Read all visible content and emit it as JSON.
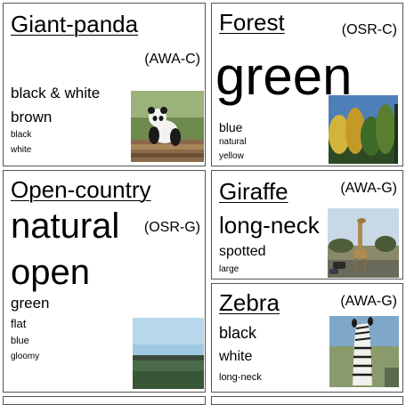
{
  "cards": [
    {
      "title": "Giant-panda",
      "code": "(AWA-C)",
      "attributes": [
        "black & white",
        "brown",
        "black",
        "white"
      ],
      "image": "panda-photo"
    },
    {
      "title": "Forest",
      "code": "(OSR-C)",
      "attributes": [
        "green",
        "blue",
        "natural",
        "yellow"
      ],
      "image": "forest-photo"
    },
    {
      "title": "Open-country",
      "code": "(OSR-G)",
      "attributes": [
        "natural",
        "open",
        "green",
        "flat",
        "blue",
        "gloomy"
      ],
      "image": "open-country-photo"
    },
    {
      "title": "Giraffe",
      "code": "(AWA-G)",
      "attributes": [
        "long-neck",
        "spotted",
        "large"
      ],
      "image": "giraffe-photo"
    },
    {
      "title": "Zebra",
      "code": "(AWA-G)",
      "attributes": [
        "black",
        "white",
        "long-neck"
      ],
      "image": "zebra-photo"
    }
  ]
}
